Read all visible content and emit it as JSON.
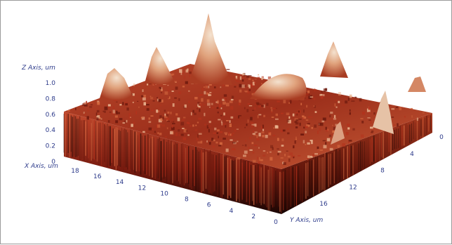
{
  "chart_data": {
    "type": "surface",
    "x_axis": {
      "label": "X Axis, um",
      "ticks": [
        "18",
        "16",
        "14",
        "12",
        "10",
        "8",
        "6",
        "4",
        "2",
        "0"
      ]
    },
    "y_axis": {
      "label": "Y Axis, um",
      "ticks": [
        "0",
        "4",
        "8",
        "12",
        "16"
      ]
    },
    "z_axis": {
      "label": "Z Axis, um",
      "ticks": [
        "0",
        "0.2",
        "0.4",
        "0.6",
        "0.8",
        "1.0"
      ],
      "range": [
        0,
        1.0
      ]
    },
    "colormap": [
      "#2a0a05",
      "#6e1a0e",
      "#b3321c",
      "#d4683f",
      "#e9b48f",
      "#f6e5d6"
    ],
    "grid": false
  }
}
